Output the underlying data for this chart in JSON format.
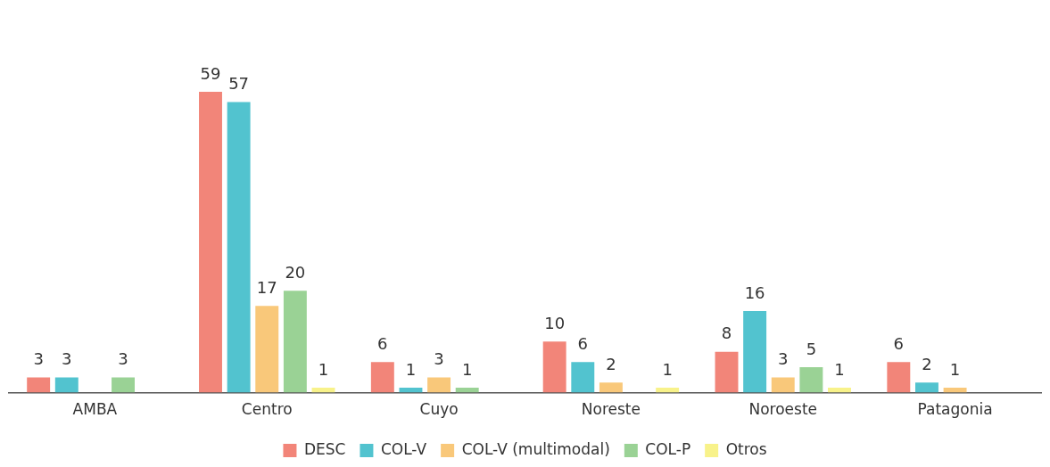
{
  "chart_data": {
    "type": "bar",
    "categories": [
      "AMBA",
      "Centro",
      "Cuyo",
      "Noreste",
      "Noroeste",
      "Patagonia"
    ],
    "series": [
      {
        "name": "DESC",
        "color": "#f28579",
        "values": [
          3,
          59,
          6,
          10,
          8,
          6
        ]
      },
      {
        "name": "COL-V",
        "color": "#52c3cf",
        "values": [
          3,
          57,
          1,
          6,
          16,
          2
        ]
      },
      {
        "name": "COL-V (multimodal)",
        "color": "#f9c87a",
        "values": [
          null,
          17,
          3,
          2,
          3,
          1
        ]
      },
      {
        "name": "COL-P",
        "color": "#9ad295",
        "values": [
          3,
          20,
          1,
          null,
          5,
          null
        ]
      },
      {
        "name": "Otros",
        "color": "#f8f28a",
        "values": [
          null,
          1,
          null,
          1,
          1,
          null
        ]
      }
    ],
    "data_labels": true,
    "legend": "bottom",
    "grid": false
  }
}
